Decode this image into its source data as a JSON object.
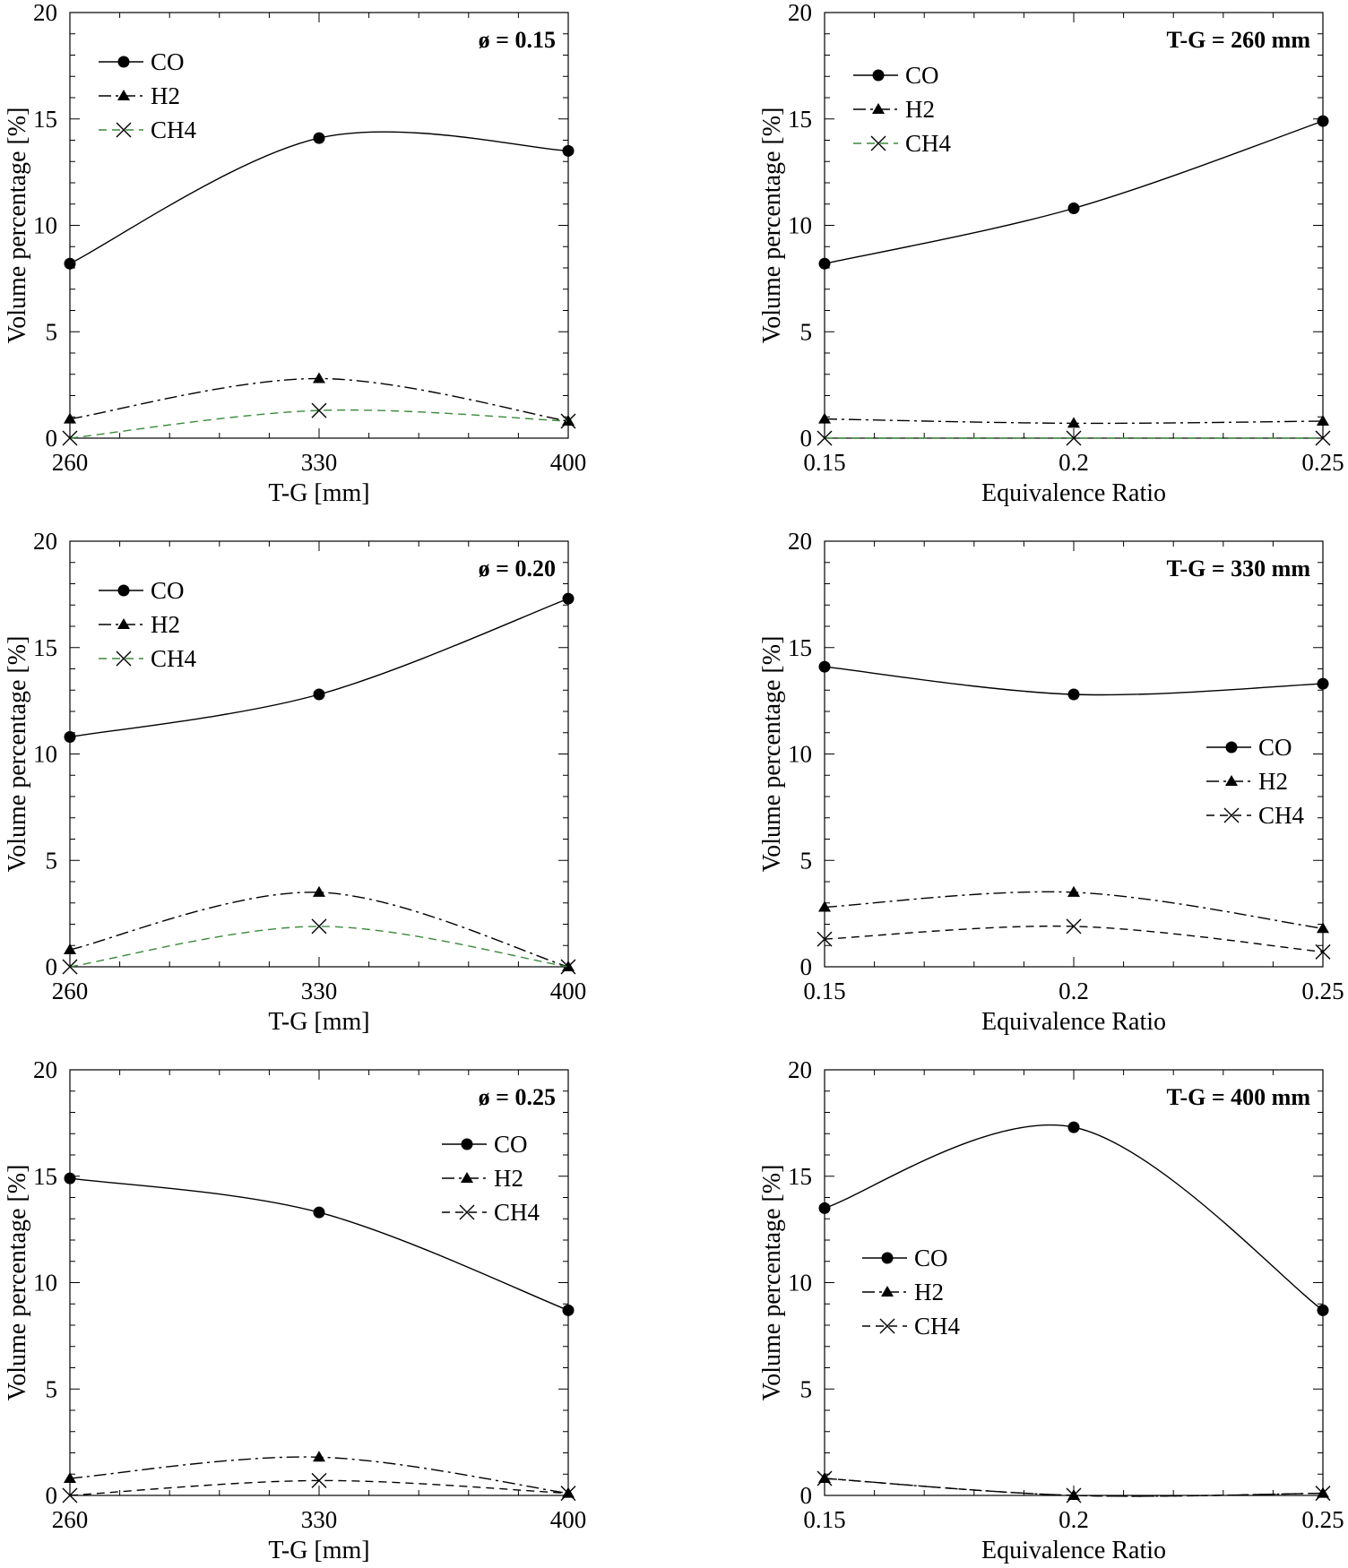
{
  "chart_data": [
    {
      "type": "line",
      "title": "ø = 0.15",
      "xlabel": "T-G [mm]",
      "ylabel": "Volume percentage [%]",
      "x": [
        260,
        330,
        400
      ],
      "xticks": [
        "260",
        "330",
        "400"
      ],
      "xlim": [
        260,
        400
      ],
      "ylim": [
        0,
        20
      ],
      "yticks": [
        "0",
        "5",
        "10",
        "15",
        "20"
      ],
      "legend_position": "top-left",
      "grid": false,
      "series": [
        {
          "name": "CO",
          "values": [
            8.2,
            14.1,
            13.5
          ],
          "marker": "circle",
          "dash": "solid",
          "color": "#000000"
        },
        {
          "name": "H2",
          "values": [
            0.9,
            2.8,
            0.8
          ],
          "marker": "triangle",
          "dash": "dashdot",
          "color": "#000000"
        },
        {
          "name": "CH4",
          "values": [
            0.0,
            1.3,
            0.8
          ],
          "marker": "x",
          "dash": "dashed",
          "color": "#3a8a3a"
        }
      ]
    },
    {
      "type": "line",
      "title": "T-G = 260 mm",
      "xlabel": "Equivalence Ratio",
      "ylabel": "Volume percentage [%]",
      "x": [
        0.15,
        0.2,
        0.25
      ],
      "xticks": [
        "0.15",
        "0.2",
        "0.25"
      ],
      "xlim": [
        0.15,
        0.25
      ],
      "ylim": [
        0,
        20
      ],
      "yticks": [
        "0",
        "5",
        "10",
        "15",
        "20"
      ],
      "legend_position": "top-left",
      "grid": false,
      "series": [
        {
          "name": "CO",
          "values": [
            8.2,
            10.8,
            14.9
          ],
          "marker": "circle",
          "dash": "solid",
          "color": "#000000"
        },
        {
          "name": "H2",
          "values": [
            0.9,
            0.7,
            0.8
          ],
          "marker": "triangle",
          "dash": "dashdot",
          "color": "#000000"
        },
        {
          "name": "CH4",
          "values": [
            0.0,
            0.0,
            0.0
          ],
          "marker": "x",
          "dash": "dashed",
          "color": "#3a8a3a"
        }
      ]
    },
    {
      "type": "line",
      "title": "ø = 0.20",
      "xlabel": "T-G [mm]",
      "ylabel": "Volume percentage [%]",
      "x": [
        260,
        330,
        400
      ],
      "xticks": [
        "260",
        "330",
        "400"
      ],
      "xlim": [
        260,
        400
      ],
      "ylim": [
        0,
        20
      ],
      "yticks": [
        "0",
        "5",
        "10",
        "15",
        "20"
      ],
      "legend_position": "top-left",
      "grid": false,
      "series": [
        {
          "name": "CO",
          "values": [
            10.8,
            12.8,
            17.3
          ],
          "marker": "circle",
          "dash": "solid",
          "color": "#000000"
        },
        {
          "name": "H2",
          "values": [
            0.8,
            3.5,
            0.0
          ],
          "marker": "triangle",
          "dash": "dashdot",
          "color": "#000000"
        },
        {
          "name": "CH4",
          "values": [
            0.0,
            1.9,
            0.0
          ],
          "marker": "x",
          "dash": "dashed",
          "color": "#3a8a3a"
        }
      ]
    },
    {
      "type": "line",
      "title": "T-G = 330 mm",
      "xlabel": "Equivalence Ratio",
      "ylabel": "Volume percentage [%]",
      "x": [
        0.15,
        0.2,
        0.25
      ],
      "xticks": [
        "0.15",
        "0.2",
        "0.25"
      ],
      "xlim": [
        0.15,
        0.25
      ],
      "ylim": [
        0,
        20
      ],
      "yticks": [
        "0",
        "5",
        "10",
        "15",
        "20"
      ],
      "legend_position": "middle-right",
      "grid": false,
      "series": [
        {
          "name": "CO",
          "values": [
            14.1,
            12.8,
            13.3
          ],
          "marker": "circle",
          "dash": "solid",
          "color": "#000000"
        },
        {
          "name": "H2",
          "values": [
            2.8,
            3.5,
            1.8
          ],
          "marker": "triangle",
          "dash": "dashdot",
          "color": "#000000"
        },
        {
          "name": "CH4",
          "values": [
            1.3,
            1.9,
            0.7
          ],
          "marker": "x",
          "dash": "dashed",
          "color": "#000000"
        }
      ]
    },
    {
      "type": "line",
      "title": "ø = 0.25",
      "xlabel": "T-G [mm]",
      "ylabel": "Volume percentage [%]",
      "x": [
        260,
        330,
        400
      ],
      "xticks": [
        "260",
        "330",
        "400"
      ],
      "xlim": [
        260,
        400
      ],
      "ylim": [
        0,
        20
      ],
      "yticks": [
        "0",
        "5",
        "10",
        "15",
        "20"
      ],
      "legend_position": "top-right",
      "grid": false,
      "series": [
        {
          "name": "CO",
          "values": [
            14.9,
            13.3,
            8.7
          ],
          "marker": "circle",
          "dash": "solid",
          "color": "#000000"
        },
        {
          "name": "H2",
          "values": [
            0.8,
            1.8,
            0.1
          ],
          "marker": "triangle",
          "dash": "dashdot",
          "color": "#000000"
        },
        {
          "name": "CH4",
          "values": [
            0.0,
            0.7,
            0.1
          ],
          "marker": "x",
          "dash": "dashed",
          "color": "#000000"
        }
      ]
    },
    {
      "type": "line",
      "title": "T-G = 400 mm",
      "xlabel": "Equivalence Ratio",
      "ylabel": "Volume percentage [%]",
      "x": [
        0.15,
        0.2,
        0.25
      ],
      "xticks": [
        "0.15",
        "0.2",
        "0.25"
      ],
      "xlim": [
        0.15,
        0.25
      ],
      "ylim": [
        0,
        20
      ],
      "yticks": [
        "0",
        "5",
        "10",
        "15",
        "20"
      ],
      "legend_position": "middle-left",
      "grid": false,
      "series": [
        {
          "name": "CO",
          "values": [
            13.5,
            17.3,
            8.7
          ],
          "marker": "circle",
          "dash": "solid",
          "color": "#000000"
        },
        {
          "name": "H2",
          "values": [
            0.8,
            0.0,
            0.1
          ],
          "marker": "triangle",
          "dash": "dashdot",
          "color": "#000000"
        },
        {
          "name": "CH4",
          "values": [
            0.8,
            0.0,
            0.1
          ],
          "marker": "x",
          "dash": "dashed",
          "color": "#000000"
        }
      ]
    }
  ]
}
